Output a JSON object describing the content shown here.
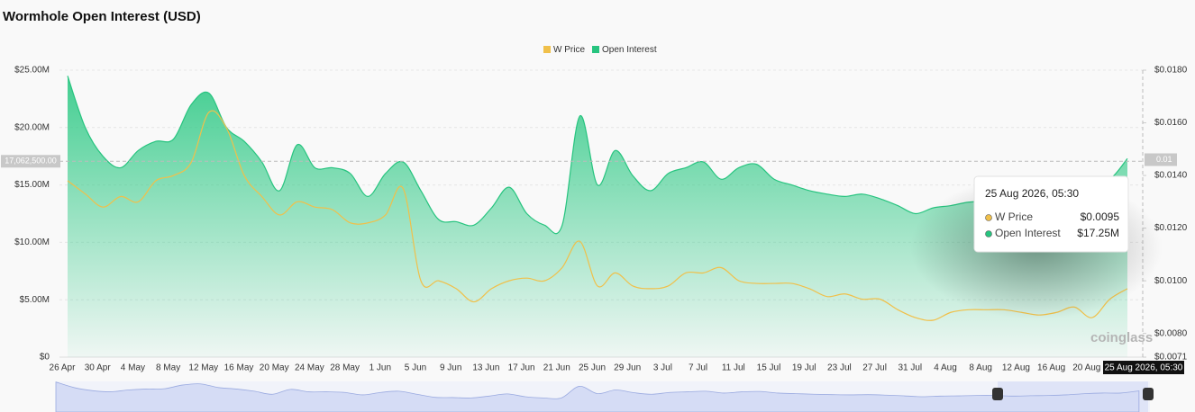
{
  "chart_data": {
    "type": "area-line",
    "title": "Wormhole Open Interest (USD)",
    "categories": [
      "26 Apr",
      null,
      "30 Apr",
      null,
      "4 May",
      null,
      "8 May",
      null,
      "12 May",
      null,
      "16 May",
      null,
      "20 May",
      null,
      "24 May",
      null,
      "28 May",
      null,
      "1 Jun",
      null,
      "5 Jun",
      null,
      "9 Jun",
      null,
      "13 Jun",
      null,
      "17 Jun",
      null,
      "21 Jun",
      null,
      "25 Jun",
      null,
      "29 Jun",
      null,
      "3 Jul",
      null,
      "7 Jul",
      null,
      "11 Jul",
      null,
      "15 Jul",
      null,
      "19 Jul",
      null,
      "23 Jul",
      null,
      "27 Jul",
      null,
      "31 Jul",
      null,
      "4 Aug",
      null,
      "8 Aug",
      null,
      "12 Aug",
      null,
      "16 Aug",
      null,
      "20 Aug",
      null,
      null
    ],
    "series": [
      {
        "name": "W Price",
        "color": "#f0c04a",
        "axis": "y2",
        "values": [
          0.0138,
          0.0133,
          0.0128,
          0.0132,
          0.013,
          0.0138,
          0.014,
          0.0145,
          0.0164,
          0.0158,
          0.014,
          0.0132,
          0.0125,
          0.013,
          0.0128,
          0.0127,
          0.0122,
          0.0122,
          0.0125,
          0.0135,
          0.01,
          0.01,
          0.0097,
          0.0092,
          0.0097,
          0.01,
          0.0101,
          0.01,
          0.0105,
          0.0115,
          0.0098,
          0.0103,
          0.0098,
          0.0097,
          0.0098,
          0.0103,
          0.0103,
          0.0105,
          0.01,
          0.0099,
          0.0099,
          0.0099,
          0.0097,
          0.0094,
          0.0095,
          0.0093,
          0.0093,
          0.0089,
          0.0086,
          0.0085,
          0.0088,
          0.0089,
          0.0089,
          0.0089,
          0.0088,
          0.0087,
          0.0088,
          0.009,
          0.0086,
          0.0093,
          0.0097
        ]
      },
      {
        "name": "Open Interest",
        "color": "#27c47f",
        "values": [
          24500000,
          20000000,
          17500000,
          16500000,
          18000000,
          18800000,
          19000000,
          22000000,
          23000000,
          20000000,
          18800000,
          17000000,
          14500000,
          18500000,
          16500000,
          16500000,
          16000000,
          14000000,
          16000000,
          17000000,
          14500000,
          12000000,
          11800000,
          11500000,
          13000000,
          14800000,
          12500000,
          11500000,
          11500000,
          21000000,
          15000000,
          18000000,
          15800000,
          14500000,
          16000000,
          16500000,
          17000000,
          15500000,
          16500000,
          16800000,
          15500000,
          15000000,
          14500000,
          14200000,
          14000000,
          14200000,
          13800000,
          13200000,
          12500000,
          13000000,
          13200000,
          13500000,
          13500000,
          13000000,
          13300000,
          13500000,
          14000000,
          15000000,
          15500000,
          15500000,
          17300000
        ]
      }
    ],
    "ylim": [
      0,
      25000000
    ],
    "yticks": [
      {
        "value": 0,
        "label": "$0"
      },
      {
        "value": 5000000,
        "label": "$5.00M"
      },
      {
        "value": 10000000,
        "label": "$10.00M"
      },
      {
        "value": 15000000,
        "label": "$15.00M"
      },
      {
        "value": 20000000,
        "label": "$20.00M"
      },
      {
        "value": 25000000,
        "label": "$25.00M"
      }
    ],
    "y2lim": [
      0.0071,
      0.018
    ],
    "y2ticks": [
      {
        "value": 0.0071,
        "label": "$0.0071"
      },
      {
        "value": 0.008,
        "label": "$0.0080"
      },
      {
        "value": 0.01,
        "label": "$0.0100"
      },
      {
        "value": 0.012,
        "label": "$0.0120"
      },
      {
        "value": 0.014,
        "label": "$0.0140"
      },
      {
        "value": 0.016,
        "label": "$0.0160"
      },
      {
        "value": 0.018,
        "label": "$0.0180"
      }
    ],
    "grid": true,
    "legend": "top",
    "crosshair": {
      "y": {
        "value": 17062500,
        "label": "17,062,500.00"
      },
      "y2": {
        "value": 0.0146,
        "label": "0.01"
      },
      "x_label": "25 Aug 2026, 05:30"
    },
    "tooltip": {
      "title": "25 Aug 2026, 05:30",
      "values": [
        {
          "value": 0.0095,
          "label": "$0.0095"
        },
        {
          "value": 17250000,
          "label": "$17.25M"
        }
      ]
    },
    "watermark": "coinglass"
  }
}
